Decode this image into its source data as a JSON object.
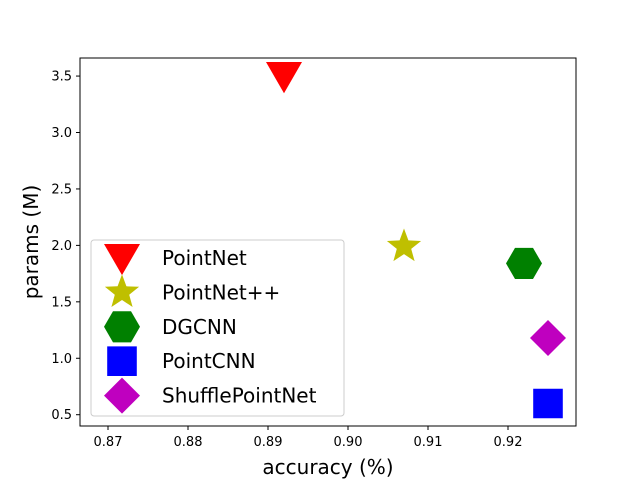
{
  "chart_data": {
    "type": "scatter",
    "title": "",
    "xlabel": "accuracy (%)",
    "ylabel": "params (M)",
    "xlim": [
      0.8665,
      0.9285
    ],
    "ylim": [
      0.4,
      3.66
    ],
    "grid": false,
    "legend_position": "lower-left",
    "x_ticks": [
      {
        "value": 0.87,
        "label": "0.87"
      },
      {
        "value": 0.88,
        "label": "0.88"
      },
      {
        "value": 0.89,
        "label": "0.89"
      },
      {
        "value": 0.9,
        "label": "0.90"
      },
      {
        "value": 0.91,
        "label": "0.91"
      },
      {
        "value": 0.92,
        "label": "0.92"
      }
    ],
    "y_ticks": [
      {
        "value": 0.5,
        "label": "0.5"
      },
      {
        "value": 1.0,
        "label": "1.0"
      },
      {
        "value": 1.5,
        "label": "1.5"
      },
      {
        "value": 2.0,
        "label": "2.0"
      },
      {
        "value": 2.5,
        "label": "2.5"
      },
      {
        "value": 3.0,
        "label": "3.0"
      },
      {
        "value": 3.5,
        "label": "3.5"
      }
    ],
    "series": [
      {
        "name": "PointNet",
        "marker": "triangle-down",
        "color": "#ff0000",
        "x": 0.892,
        "y": 3.5
      },
      {
        "name": "PointNet++",
        "marker": "star",
        "color": "#bfbf00",
        "x": 0.907,
        "y": 1.99
      },
      {
        "name": "DGCNN",
        "marker": "hexagon",
        "color": "#008000",
        "x": 0.922,
        "y": 1.84
      },
      {
        "name": "PointCNN",
        "marker": "square",
        "color": "#0000ff",
        "x": 0.925,
        "y": 0.6
      },
      {
        "name": "ShufflePointNet",
        "marker": "diamond",
        "color": "#bf00bf",
        "x": 0.925,
        "y": 1.18
      }
    ]
  }
}
